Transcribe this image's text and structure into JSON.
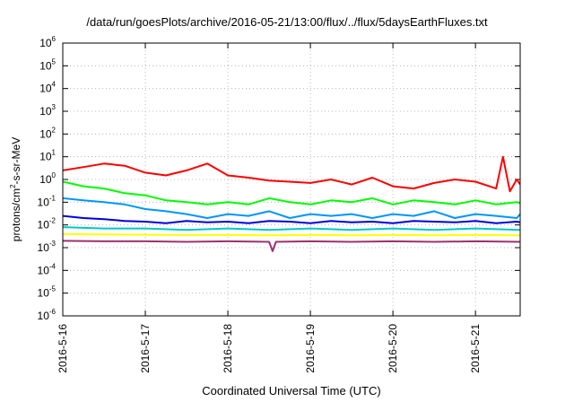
{
  "chart_data": {
    "type": "line",
    "title": "/data/run/goesPlots/archive/2016-05-21/13:00/flux/../flux/5daysEarthFluxes.txt",
    "xlabel": "Coordinated Universal Time (UTC)",
    "ylabel": "protons/cm2-s-sr-MeV",
    "ylabel_parts": {
      "pre": "protons/cm",
      "sup": "2",
      "post": "-s-sr-MeV"
    },
    "yscale": "log",
    "ylim": [
      1e-06,
      1000000.0
    ],
    "xlim": [
      "2016-05-16",
      "2016-05-21 13:00"
    ],
    "x_ticks": [
      "2016-5-16",
      "2016-5-17",
      "2016-5-18",
      "2016-5-19",
      "2016-5-20",
      "2016-5-21"
    ],
    "y_ticks": [
      {
        "base": "10",
        "exp": "-6"
      },
      {
        "base": "10",
        "exp": "-5"
      },
      {
        "base": "10",
        "exp": "-4"
      },
      {
        "base": "10",
        "exp": "-3"
      },
      {
        "base": "10",
        "exp": "-2"
      },
      {
        "base": "10",
        "exp": "-1"
      },
      {
        "base": "10",
        "exp": "0"
      },
      {
        "base": "10",
        "exp": "1"
      },
      {
        "base": "10",
        "exp": "2"
      },
      {
        "base": "10",
        "exp": "3"
      },
      {
        "base": "10",
        "exp": "4"
      },
      {
        "base": "10",
        "exp": "5"
      },
      {
        "base": "10",
        "exp": "6"
      }
    ],
    "grid": true,
    "series": [
      {
        "color": "#ff0000",
        "x": [
          "2016-05-16 00:00",
          "2016-05-16 06:00",
          "2016-05-16 12:00",
          "2016-05-16 18:00",
          "2016-05-17 00:00",
          "2016-05-17 06:00",
          "2016-05-17 12:00",
          "2016-05-17 18:00",
          "2016-05-18 00:00",
          "2016-05-18 06:00",
          "2016-05-18 12:00",
          "2016-05-18 18:00",
          "2016-05-19 00:00",
          "2016-05-19 06:00",
          "2016-05-19 12:00",
          "2016-05-19 18:00",
          "2016-05-20 00:00",
          "2016-05-20 06:00",
          "2016-05-20 12:00",
          "2016-05-20 18:00",
          "2016-05-21 00:00",
          "2016-05-21 06:00",
          "2016-05-21 08:00",
          "2016-05-21 10:00",
          "2016-05-21 12:00",
          "2016-05-21 13:00"
        ],
        "y": [
          2.5,
          3.5,
          5,
          4,
          2,
          1.5,
          2.5,
          5,
          1.5,
          1.2,
          0.9,
          0.8,
          0.7,
          1,
          0.6,
          1.2,
          0.5,
          0.4,
          0.7,
          1,
          0.8,
          0.4,
          10,
          0.3,
          1,
          0.6
        ]
      },
      {
        "color": "#00ff00",
        "x": [
          "2016-05-16 00:00",
          "2016-05-16 06:00",
          "2016-05-16 12:00",
          "2016-05-16 18:00",
          "2016-05-17 00:00",
          "2016-05-17 06:00",
          "2016-05-17 12:00",
          "2016-05-17 18:00",
          "2016-05-18 00:00",
          "2016-05-18 06:00",
          "2016-05-18 12:00",
          "2016-05-18 18:00",
          "2016-05-19 00:00",
          "2016-05-19 06:00",
          "2016-05-19 12:00",
          "2016-05-19 18:00",
          "2016-05-20 00:00",
          "2016-05-20 06:00",
          "2016-05-20 12:00",
          "2016-05-20 18:00",
          "2016-05-21 00:00",
          "2016-05-21 06:00",
          "2016-05-21 12:00",
          "2016-05-21 13:00"
        ],
        "y": [
          0.8,
          0.5,
          0.4,
          0.25,
          0.2,
          0.12,
          0.1,
          0.08,
          0.1,
          0.08,
          0.15,
          0.1,
          0.08,
          0.12,
          0.1,
          0.15,
          0.08,
          0.12,
          0.1,
          0.08,
          0.12,
          0.08,
          0.1,
          0.09
        ]
      },
      {
        "color": "#0096ff",
        "x": [
          "2016-05-16 00:00",
          "2016-05-16 06:00",
          "2016-05-16 12:00",
          "2016-05-16 18:00",
          "2016-05-17 00:00",
          "2016-05-17 06:00",
          "2016-05-17 12:00",
          "2016-05-17 18:00",
          "2016-05-18 00:00",
          "2016-05-18 06:00",
          "2016-05-18 12:00",
          "2016-05-18 18:00",
          "2016-05-19 00:00",
          "2016-05-19 06:00",
          "2016-05-19 12:00",
          "2016-05-19 18:00",
          "2016-05-20 00:00",
          "2016-05-20 06:00",
          "2016-05-20 12:00",
          "2016-05-20 18:00",
          "2016-05-21 00:00",
          "2016-05-21 06:00",
          "2016-05-21 12:00",
          "2016-05-21 13:00"
        ],
        "y": [
          0.15,
          0.12,
          0.1,
          0.08,
          0.05,
          0.04,
          0.03,
          0.02,
          0.03,
          0.025,
          0.04,
          0.02,
          0.03,
          0.025,
          0.03,
          0.02,
          0.03,
          0.025,
          0.04,
          0.02,
          0.03,
          0.025,
          0.02,
          0.03
        ]
      },
      {
        "color": "#0000dd",
        "x": [
          "2016-05-16 00:00",
          "2016-05-16 06:00",
          "2016-05-16 12:00",
          "2016-05-16 18:00",
          "2016-05-17 00:00",
          "2016-05-17 06:00",
          "2016-05-17 12:00",
          "2016-05-17 18:00",
          "2016-05-18 00:00",
          "2016-05-18 06:00",
          "2016-05-18 12:00",
          "2016-05-18 18:00",
          "2016-05-19 00:00",
          "2016-05-19 06:00",
          "2016-05-19 12:00",
          "2016-05-19 18:00",
          "2016-05-20 00:00",
          "2016-05-20 06:00",
          "2016-05-20 12:00",
          "2016-05-20 18:00",
          "2016-05-21 00:00",
          "2016-05-21 06:00",
          "2016-05-21 12:00",
          "2016-05-21 13:00"
        ],
        "y": [
          0.025,
          0.02,
          0.018,
          0.015,
          0.014,
          0.012,
          0.015,
          0.013,
          0.014,
          0.012,
          0.015,
          0.014,
          0.012,
          0.015,
          0.013,
          0.014,
          0.012,
          0.015,
          0.014,
          0.013,
          0.015,
          0.012,
          0.014,
          0.013
        ]
      },
      {
        "color": "#00c8c8",
        "x": [
          "2016-05-16 00:00",
          "2016-05-16 12:00",
          "2016-05-17 00:00",
          "2016-05-17 12:00",
          "2016-05-18 00:00",
          "2016-05-18 12:00",
          "2016-05-19 00:00",
          "2016-05-19 12:00",
          "2016-05-20 00:00",
          "2016-05-20 12:00",
          "2016-05-21 00:00",
          "2016-05-21 13:00"
        ],
        "y": [
          0.008,
          0.007,
          0.007,
          0.006,
          0.007,
          0.006,
          0.007,
          0.006,
          0.007,
          0.006,
          0.007,
          0.006
        ]
      },
      {
        "color": "#ffff00",
        "x": [
          "2016-05-16 00:00",
          "2016-05-16 12:00",
          "2016-05-17 00:00",
          "2016-05-17 12:00",
          "2016-05-18 00:00",
          "2016-05-18 12:00",
          "2016-05-19 00:00",
          "2016-05-19 12:00",
          "2016-05-20 00:00",
          "2016-05-20 12:00",
          "2016-05-21 00:00",
          "2016-05-21 13:00"
        ],
        "y": [
          0.004,
          0.0038,
          0.0037,
          0.0036,
          0.0036,
          0.0035,
          0.0036,
          0.0035,
          0.0036,
          0.0035,
          0.0036,
          0.0035
        ]
      },
      {
        "color": "#a0306e",
        "x": [
          "2016-05-16 00:00",
          "2016-05-16 12:00",
          "2016-05-17 00:00",
          "2016-05-17 12:00",
          "2016-05-18 00:00",
          "2016-05-18 12:00",
          "2016-05-18 13:00",
          "2016-05-18 14:00",
          "2016-05-19 00:00",
          "2016-05-19 12:00",
          "2016-05-20 00:00",
          "2016-05-20 12:00",
          "2016-05-21 00:00",
          "2016-05-21 13:00"
        ],
        "y": [
          0.002,
          0.0019,
          0.0019,
          0.0018,
          0.0019,
          0.0018,
          0.0007,
          0.0018,
          0.0019,
          0.0018,
          0.0019,
          0.0018,
          0.0019,
          0.0018
        ]
      }
    ]
  }
}
